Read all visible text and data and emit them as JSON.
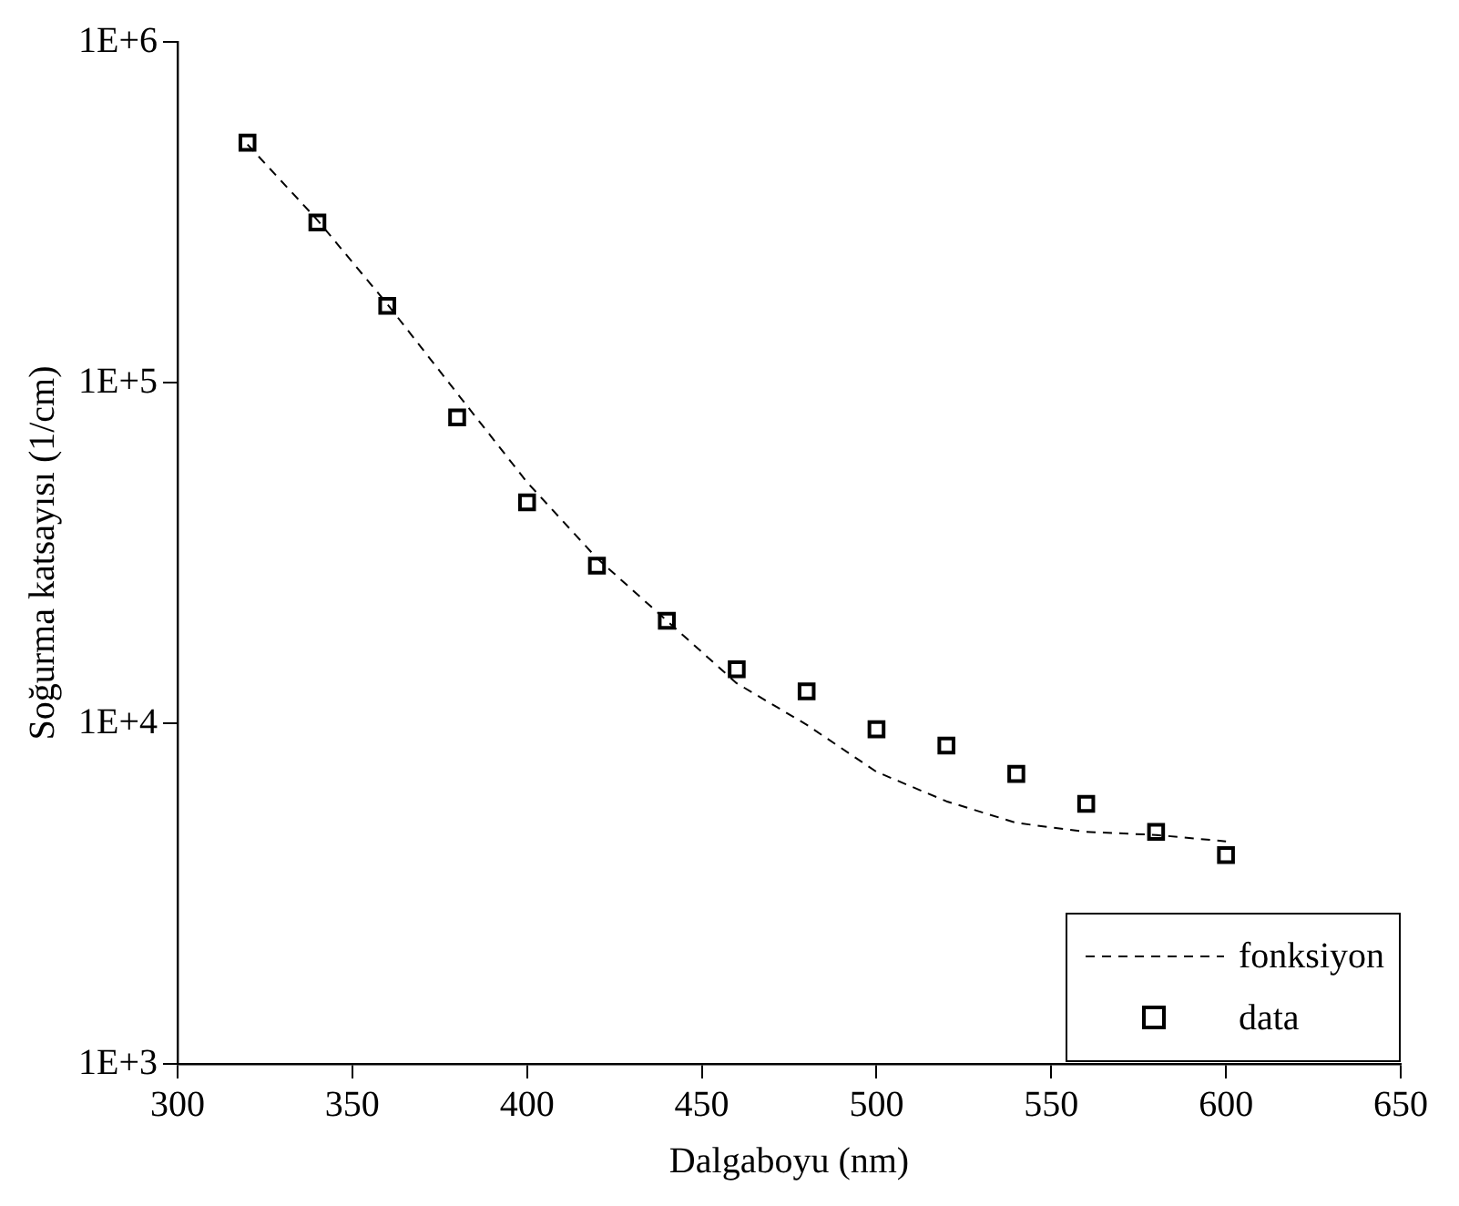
{
  "chart_data": {
    "type": "scatter",
    "xlabel": "Dalgaboyu (nm)",
    "ylabel": "Soğurma katsayısı (1/cm)",
    "log": "y",
    "grid": false,
    "legend": "bottom right",
    "xlim": [
      300,
      650
    ],
    "xticks": [
      300,
      350,
      400,
      450,
      500,
      550,
      600,
      650
    ],
    "ylim": [
      1000,
      1000000
    ],
    "yticks": [
      {
        "value": 1000,
        "label": "1E+3"
      },
      {
        "value": 10000,
        "label": "1E+4"
      },
      {
        "value": 100000,
        "label": "1E+5"
      },
      {
        "value": 1000000,
        "label": "1E+6"
      }
    ],
    "series": [
      {
        "name": "fonksiyon",
        "type": "line",
        "line_style": "dashed",
        "marker": "none",
        "color": "#000000",
        "x": [
          320,
          340,
          360,
          380,
          400,
          420,
          440,
          460,
          480,
          500,
          520,
          540,
          560,
          580,
          600
        ],
        "values": [
          500000,
          300000,
          170000,
          93000,
          51000,
          30500,
          20000,
          13100,
          9900,
          7200,
          5900,
          5100,
          4800,
          4700,
          4500
        ]
      },
      {
        "name": "data",
        "type": "scatter",
        "marker": "square",
        "color": "#000000",
        "x": [
          320,
          340,
          360,
          380,
          400,
          420,
          440,
          460,
          480,
          500,
          520,
          540,
          560,
          580,
          600
        ],
        "values": [
          506000,
          295000,
          168000,
          79000,
          44500,
          29000,
          20000,
          14400,
          12400,
          9600,
          8600,
          7100,
          5800,
          4800,
          4100
        ]
      }
    ]
  }
}
